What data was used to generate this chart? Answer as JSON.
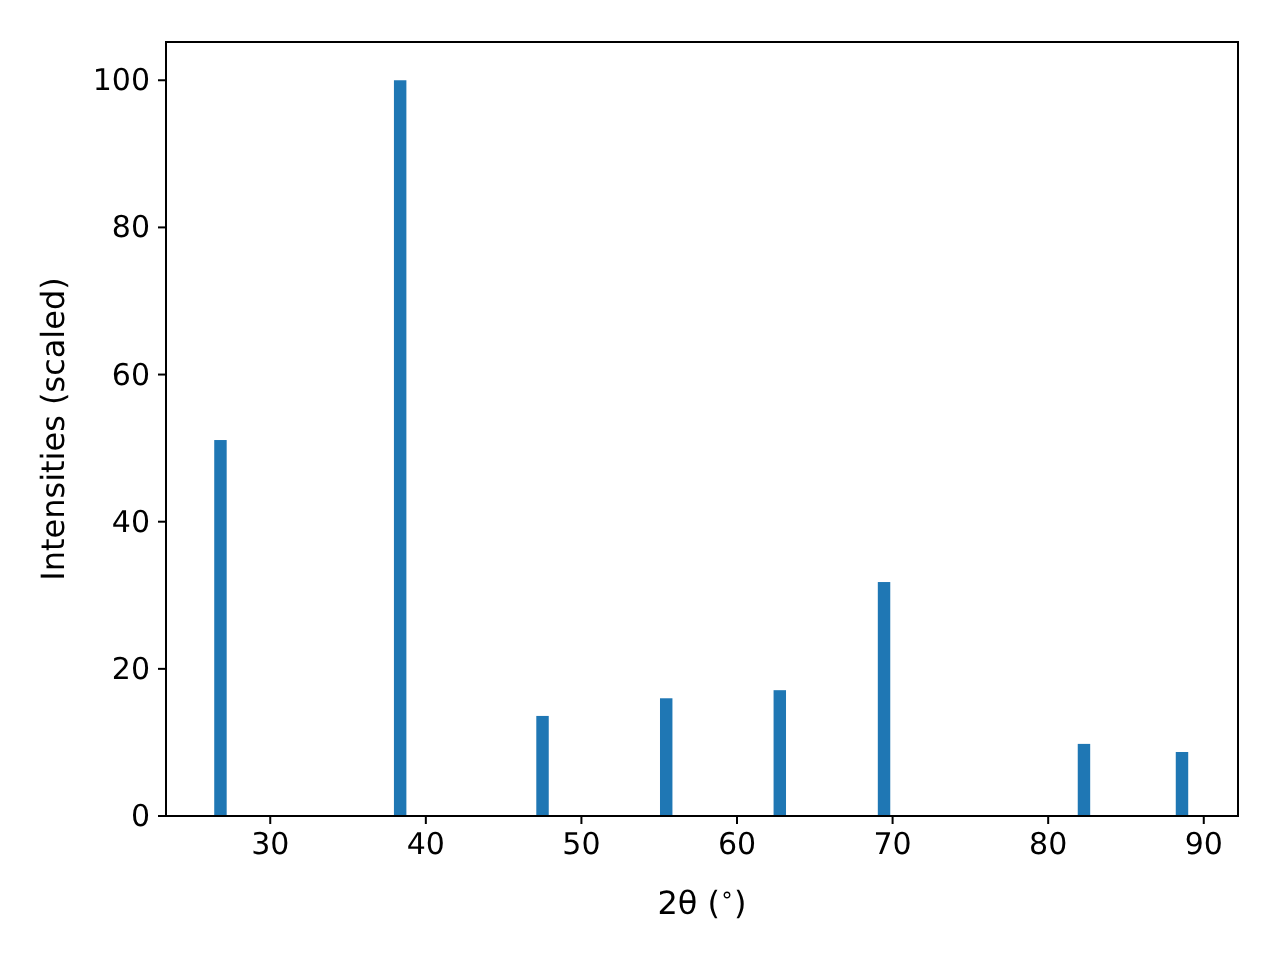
{
  "chart_data": {
    "type": "bar",
    "xlabel": "2θ ($^{∘}$)",
    "ylabel": "Intensities (scaled)",
    "x": [
      26.8,
      38.35,
      47.5,
      55.45,
      62.75,
      69.45,
      82.3,
      88.6
    ],
    "values": [
      51.1,
      100,
      13.6,
      16.0,
      17.1,
      31.8,
      9.8,
      8.7
    ],
    "color": "#1f77b4",
    "xlim": [
      23.3,
      92.2
    ],
    "xticks": [
      30,
      40,
      50,
      60,
      70,
      80,
      90
    ],
    "ylim": [
      0,
      105.2
    ],
    "yticks": [
      0,
      20,
      40,
      60,
      80,
      100
    ],
    "grid": false
  }
}
